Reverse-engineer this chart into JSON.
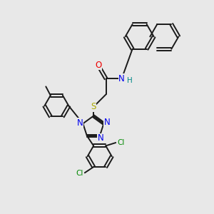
{
  "bg_color": "#e8e8e8",
  "bond_color": "#1a1a1a",
  "N_color": "#0000ee",
  "O_color": "#ee0000",
  "S_color": "#aaaa00",
  "Cl_color": "#008800",
  "H_color": "#008888",
  "line_width": 1.4,
  "figsize": [
    3.0,
    3.0
  ],
  "dpi": 100,
  "xlim": [
    0,
    10
  ],
  "ylim": [
    0,
    10
  ]
}
